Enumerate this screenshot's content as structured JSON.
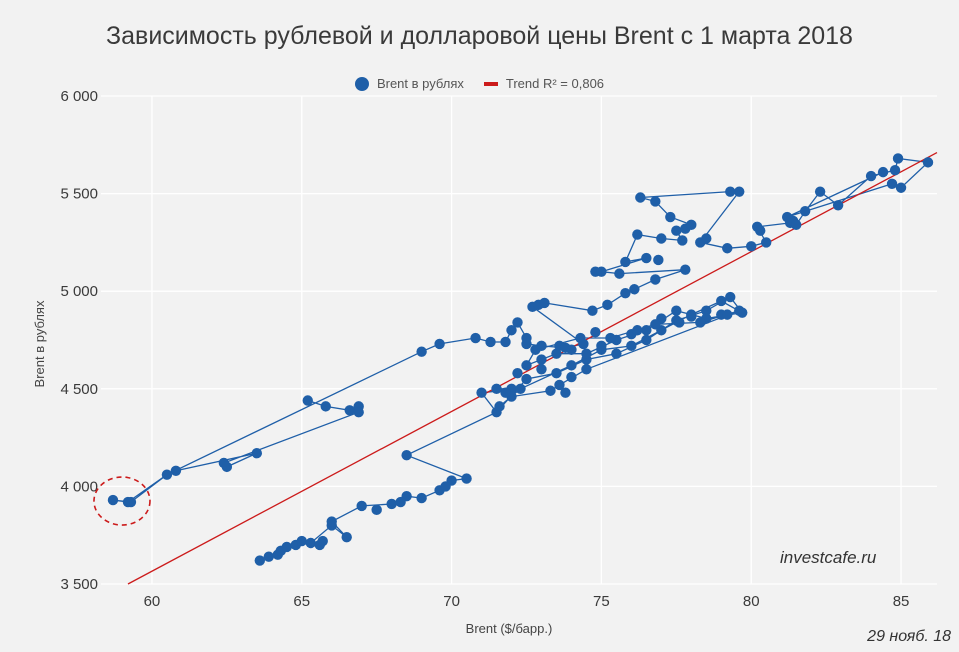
{
  "chart_data": {
    "type": "scatter",
    "title": "Зависимость рублевой и долларовой цены Brent с 1 марта 2018",
    "xlabel": "Brent ($/барр.)",
    "ylabel": "Brent в рублях",
    "xlim": [
      58.3,
      86.2
    ],
    "ylim": [
      3500,
      6000
    ],
    "xticks": [
      60,
      65,
      70,
      75,
      80,
      85
    ],
    "yticks": [
      3500,
      4000,
      4500,
      5000,
      5500,
      6000
    ],
    "xtick_labels": [
      "60",
      "65",
      "70",
      "75",
      "80",
      "85"
    ],
    "ytick_labels": [
      "3 500",
      "4 000",
      "4 500",
      "5 000",
      "5 500",
      "6 000"
    ],
    "grid": true,
    "legend_position": "top-center",
    "series": [
      {
        "name": "Brent в рублях",
        "color": "#1f5fa8",
        "points": [
          [
            63.6,
            3620
          ],
          [
            63.9,
            3640
          ],
          [
            64.2,
            3650
          ],
          [
            64.3,
            3670
          ],
          [
            64.5,
            3690
          ],
          [
            64.8,
            3700
          ],
          [
            65.0,
            3720
          ],
          [
            65.3,
            3710
          ],
          [
            65.6,
            3700
          ],
          [
            66.0,
            3800
          ],
          [
            65.7,
            3720
          ],
          [
            66.5,
            3740
          ],
          [
            66.0,
            3820
          ],
          [
            67.0,
            3900
          ],
          [
            67.5,
            3880
          ],
          [
            68.0,
            3910
          ],
          [
            68.5,
            3950
          ],
          [
            68.3,
            3920
          ],
          [
            69.0,
            3940
          ],
          [
            69.6,
            3980
          ],
          [
            70.0,
            4030
          ],
          [
            69.8,
            4000
          ],
          [
            70.5,
            4040
          ],
          [
            68.5,
            4160
          ],
          [
            71.5,
            4380
          ],
          [
            71.6,
            4410
          ],
          [
            71.0,
            4480
          ],
          [
            72.0,
            4500
          ],
          [
            72.5,
            4550
          ],
          [
            73.0,
            4600
          ],
          [
            73.5,
            4580
          ],
          [
            74.0,
            4620
          ],
          [
            74.5,
            4650
          ],
          [
            75.0,
            4700
          ],
          [
            75.5,
            4680
          ],
          [
            76.0,
            4720
          ],
          [
            76.5,
            4750
          ],
          [
            77.0,
            4800
          ],
          [
            77.5,
            4850
          ],
          [
            78.0,
            4880
          ],
          [
            78.5,
            4900
          ],
          [
            79.0,
            4950
          ],
          [
            79.3,
            4970
          ],
          [
            79.7,
            4890
          ],
          [
            79.0,
            4880
          ],
          [
            78.5,
            4860
          ],
          [
            78.0,
            4870
          ],
          [
            77.5,
            4900
          ],
          [
            77.0,
            4860
          ],
          [
            76.5,
            4800
          ],
          [
            76.0,
            4780
          ],
          [
            75.5,
            4750
          ],
          [
            75.0,
            4720
          ],
          [
            74.5,
            4680
          ],
          [
            74.0,
            4700
          ],
          [
            73.5,
            4680
          ],
          [
            73.0,
            4650
          ],
          [
            72.5,
            4620
          ],
          [
            72.2,
            4580
          ],
          [
            72.8,
            4700
          ],
          [
            73.6,
            4720
          ],
          [
            74.3,
            4760
          ],
          [
            74.8,
            4790
          ],
          [
            75.3,
            4760
          ],
          [
            76.2,
            4800
          ],
          [
            76.8,
            4830
          ],
          [
            77.6,
            4840
          ],
          [
            78.3,
            4840
          ],
          [
            79.2,
            4880
          ],
          [
            79.6,
            4900
          ],
          [
            74.5,
            4600
          ],
          [
            74.0,
            4560
          ],
          [
            73.6,
            4520
          ],
          [
            73.8,
            4480
          ],
          [
            73.3,
            4490
          ],
          [
            72.0,
            4460
          ],
          [
            71.8,
            4480
          ],
          [
            71.5,
            4500
          ],
          [
            72.3,
            4500
          ],
          [
            65.2,
            4440
          ],
          [
            65.8,
            4410
          ],
          [
            66.6,
            4390
          ],
          [
            66.9,
            4410
          ],
          [
            66.9,
            4380
          ],
          [
            62.4,
            4120
          ],
          [
            62.5,
            4100
          ],
          [
            63.5,
            4170
          ],
          [
            60.5,
            4060
          ],
          [
            60.8,
            4080
          ],
          [
            59.2,
            3920
          ],
          [
            59.3,
            3920
          ],
          [
            58.7,
            3930
          ],
          [
            69.0,
            4690
          ],
          [
            69.6,
            4730
          ],
          [
            70.8,
            4760
          ],
          [
            71.3,
            4740
          ],
          [
            71.8,
            4740
          ],
          [
            72.0,
            4800
          ],
          [
            72.2,
            4840
          ],
          [
            72.5,
            4760
          ],
          [
            72.5,
            4730
          ],
          [
            73.0,
            4720
          ],
          [
            73.8,
            4710
          ],
          [
            74.4,
            4730
          ],
          [
            72.7,
            4920
          ],
          [
            72.9,
            4930
          ],
          [
            73.1,
            4940
          ],
          [
            74.7,
            4900
          ],
          [
            75.2,
            4930
          ],
          [
            75.8,
            4990
          ],
          [
            76.1,
            5010
          ],
          [
            76.8,
            5060
          ],
          [
            77.8,
            5110
          ],
          [
            75.6,
            5090
          ],
          [
            74.8,
            5100
          ],
          [
            75.0,
            5100
          ],
          [
            76.5,
            5170
          ],
          [
            76.9,
            5160
          ],
          [
            75.8,
            5150
          ],
          [
            76.2,
            5290
          ],
          [
            77.0,
            5270
          ],
          [
            77.7,
            5260
          ],
          [
            77.5,
            5310
          ],
          [
            77.8,
            5320
          ],
          [
            78.0,
            5340
          ],
          [
            77.3,
            5380
          ],
          [
            76.8,
            5460
          ],
          [
            76.3,
            5480
          ],
          [
            79.3,
            5510
          ],
          [
            79.6,
            5510
          ],
          [
            78.3,
            5250
          ],
          [
            78.5,
            5270
          ],
          [
            79.2,
            5220
          ],
          [
            80.0,
            5230
          ],
          [
            80.5,
            5250
          ],
          [
            80.2,
            5330
          ],
          [
            80.3,
            5310
          ],
          [
            81.3,
            5350
          ],
          [
            81.4,
            5360
          ],
          [
            81.5,
            5340
          ],
          [
            81.2,
            5380
          ],
          [
            81.8,
            5410
          ],
          [
            82.3,
            5510
          ],
          [
            82.9,
            5440
          ],
          [
            84.0,
            5590
          ],
          [
            84.4,
            5610
          ],
          [
            84.7,
            5550
          ],
          [
            84.8,
            5620
          ],
          [
            84.9,
            5680
          ],
          [
            85.0,
            5530
          ],
          [
            85.9,
            5660
          ]
        ],
        "path": [
          [
            63.6,
            3620
          ],
          [
            64.2,
            3650
          ],
          [
            64.8,
            3700
          ],
          [
            65.3,
            3710
          ],
          [
            66.0,
            3800
          ],
          [
            66.5,
            3740
          ],
          [
            66.0,
            3820
          ],
          [
            67.0,
            3900
          ],
          [
            68.0,
            3910
          ],
          [
            68.5,
            3950
          ],
          [
            69.0,
            3940
          ],
          [
            69.6,
            3980
          ],
          [
            70.0,
            4030
          ],
          [
            70.5,
            4040
          ],
          [
            68.5,
            4160
          ],
          [
            71.5,
            4380
          ],
          [
            72.5,
            4550
          ],
          [
            73.5,
            4580
          ],
          [
            74.5,
            4650
          ],
          [
            75.5,
            4680
          ],
          [
            76.5,
            4750
          ],
          [
            77.5,
            4850
          ],
          [
            78.5,
            4900
          ],
          [
            79.3,
            4970
          ],
          [
            79.7,
            4890
          ],
          [
            78.5,
            4860
          ],
          [
            77.5,
            4900
          ],
          [
            76.5,
            4800
          ],
          [
            75.5,
            4750
          ],
          [
            74.5,
            4680
          ],
          [
            73.5,
            4680
          ],
          [
            72.5,
            4620
          ],
          [
            72.8,
            4700
          ],
          [
            74.3,
            4760
          ],
          [
            75.3,
            4760
          ],
          [
            76.8,
            4830
          ],
          [
            78.3,
            4840
          ],
          [
            79.6,
            4900
          ],
          [
            74.5,
            4600
          ],
          [
            73.6,
            4520
          ],
          [
            73.3,
            4490
          ],
          [
            72.0,
            4460
          ],
          [
            71.5,
            4500
          ],
          [
            72.3,
            4500
          ],
          [
            71.6,
            4410
          ],
          [
            71.5,
            4380
          ],
          [
            71.0,
            4480
          ],
          [
            72.3,
            4500
          ],
          [
            74.0,
            4620
          ],
          [
            75.0,
            4700
          ],
          [
            76.0,
            4720
          ],
          [
            77.0,
            4800
          ],
          [
            78.0,
            4880
          ],
          [
            79.0,
            4950
          ],
          [
            79.7,
            4890
          ]
        ],
        "path2": [
          [
            65.2,
            4440
          ],
          [
            65.8,
            4410
          ],
          [
            66.6,
            4390
          ],
          [
            66.9,
            4410
          ],
          [
            66.9,
            4380
          ],
          [
            62.4,
            4120
          ],
          [
            62.5,
            4100
          ],
          [
            63.5,
            4170
          ],
          [
            60.8,
            4080
          ],
          [
            60.5,
            4060
          ],
          [
            59.2,
            3920
          ],
          [
            58.7,
            3930
          ],
          [
            59.3,
            3920
          ],
          [
            60.5,
            4060
          ],
          [
            69.0,
            4690
          ],
          [
            69.6,
            4730
          ],
          [
            70.8,
            4760
          ],
          [
            71.3,
            4740
          ],
          [
            71.8,
            4740
          ],
          [
            72.0,
            4800
          ],
          [
            72.2,
            4840
          ],
          [
            72.5,
            4760
          ],
          [
            72.5,
            4730
          ],
          [
            73.0,
            4720
          ],
          [
            73.8,
            4710
          ],
          [
            74.4,
            4730
          ],
          [
            72.7,
            4920
          ],
          [
            73.1,
            4940
          ],
          [
            74.7,
            4900
          ],
          [
            75.2,
            4930
          ],
          [
            75.8,
            4990
          ],
          [
            76.1,
            5010
          ],
          [
            76.8,
            5060
          ],
          [
            77.8,
            5110
          ],
          [
            75.6,
            5090
          ],
          [
            75.0,
            5100
          ],
          [
            76.5,
            5170
          ],
          [
            75.8,
            5150
          ],
          [
            76.2,
            5290
          ],
          [
            77.0,
            5270
          ],
          [
            77.7,
            5260
          ],
          [
            77.5,
            5310
          ],
          [
            78.0,
            5340
          ],
          [
            77.3,
            5380
          ],
          [
            76.8,
            5460
          ],
          [
            76.3,
            5480
          ],
          [
            79.3,
            5510
          ],
          [
            79.6,
            5510
          ],
          [
            78.3,
            5250
          ],
          [
            79.2,
            5220
          ],
          [
            80.0,
            5230
          ],
          [
            80.5,
            5250
          ],
          [
            80.2,
            5330
          ],
          [
            81.3,
            5350
          ],
          [
            81.5,
            5340
          ],
          [
            81.8,
            5410
          ],
          [
            82.3,
            5510
          ],
          [
            82.9,
            5440
          ],
          [
            84.0,
            5590
          ],
          [
            84.8,
            5620
          ],
          [
            84.9,
            5680
          ],
          [
            85.9,
            5660
          ],
          [
            85.0,
            5530
          ],
          [
            84.7,
            5550
          ],
          [
            81.2,
            5380
          ],
          [
            84.4,
            5610
          ]
        ]
      },
      {
        "name": "Trend R² = 0,806",
        "color": "#cc1b1b",
        "type": "line",
        "points": [
          [
            59.2,
            3500
          ],
          [
            86.2,
            5710
          ]
        ]
      }
    ],
    "annotation": {
      "type": "dashed-circle",
      "center": [
        59.0,
        3925
      ],
      "color": "#cc1b1b"
    }
  },
  "watermark": "investcafe.ru",
  "date_label": "29 нояб. 18"
}
